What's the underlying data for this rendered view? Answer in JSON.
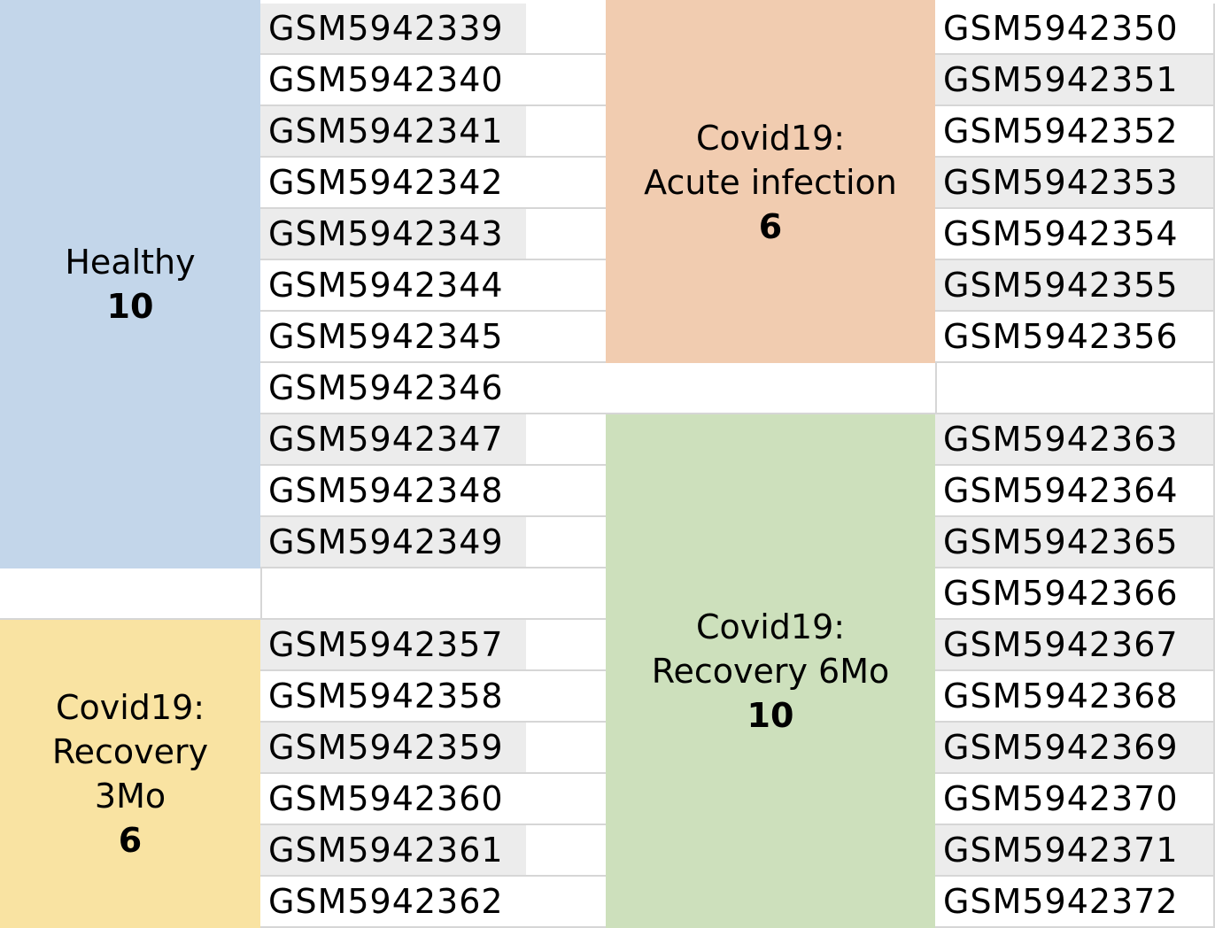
{
  "groups": {
    "healthy": {
      "name": "Healthy",
      "count": "10",
      "color": "#c3d6ea"
    },
    "recovery_3mo": {
      "name_lines": [
        "Covid19:",
        "Recovery",
        "3Mo"
      ],
      "count": "6",
      "color": "#f9e3a2"
    },
    "acute": {
      "name_lines": [
        "Covid19:",
        "Acute infection"
      ],
      "count": "6",
      "color": "#f1ccb0"
    },
    "recovery_6mo": {
      "name_lines": [
        "Covid19:",
        "Recovery 6Mo"
      ],
      "count": "10",
      "color": "#cde0bc"
    }
  },
  "left_ids": [
    "GSM5942339",
    "GSM5942340",
    "GSM5942341",
    "GSM5942342",
    "GSM5942343",
    "GSM5942344",
    "GSM5942345",
    "GSM5942346",
    "GSM5942347",
    "GSM5942348",
    "GSM5942349",
    "",
    "GSM5942357",
    "GSM5942358",
    "GSM5942359",
    "GSM5942360",
    "GSM5942361",
    "GSM5942362"
  ],
  "right_ids": [
    "GSM5942350",
    "GSM5942351",
    "GSM5942352",
    "GSM5942353",
    "GSM5942354",
    "GSM5942355",
    "GSM5942356",
    "",
    "GSM5942363",
    "GSM5942364",
    "GSM5942365",
    "GSM5942366",
    "GSM5942367",
    "GSM5942368",
    "GSM5942369",
    "GSM5942370",
    "GSM5942371",
    "GSM5942372"
  ]
}
